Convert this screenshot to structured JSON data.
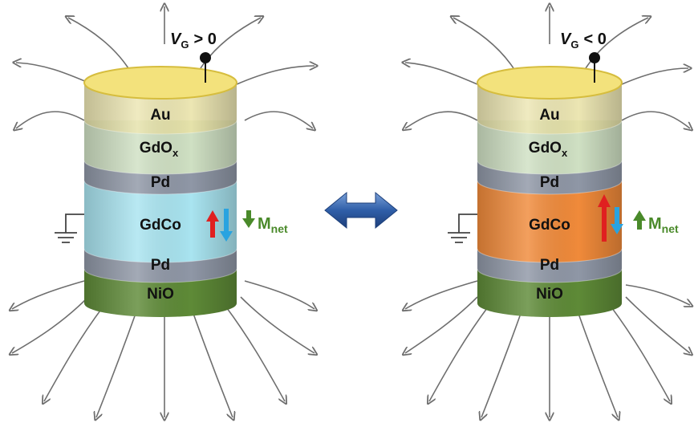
{
  "colors": {
    "field_line": "#6e6e6e",
    "gold_top": "#f3e27c",
    "gold_edge": "#d6bd3e",
    "gdox": "#cfe0c3",
    "pd": "#8f97a6",
    "gdco_left": "#a9e4f0",
    "gdco_right": "#f08a3a",
    "nio": "#5e8a37",
    "nio_top": "#7ea955",
    "arrow_red": "#e02020",
    "arrow_blue": "#29a3e0",
    "mnet_green": "#4a8a2a",
    "switch_arrow": "#2f5ea8"
  },
  "switch_arrow_icon": "double-headed-arrow",
  "left": {
    "voltage": {
      "symbol": "V",
      "subscript": "G",
      "relation": "> 0"
    },
    "layers": {
      "au": "Au",
      "gdox_main": "GdO",
      "gdox_sub": "x",
      "pd_top": "Pd",
      "gdco": "GdCo",
      "pd_bottom": "Pd",
      "nio": "NiO"
    },
    "mnet": {
      "main": "M",
      "sub": "net",
      "direction": "down"
    },
    "spin_arrows": {
      "red": "up-short",
      "blue": "down-long"
    }
  },
  "right": {
    "voltage": {
      "symbol": "V",
      "subscript": "G",
      "relation": "< 0"
    },
    "layers": {
      "au": "Au",
      "gdox_main": "GdO",
      "gdox_sub": "x",
      "pd_top": "Pd",
      "gdco": "GdCo",
      "pd_bottom": "Pd",
      "nio": "NiO"
    },
    "mnet": {
      "main": "M",
      "sub": "net",
      "direction": "up"
    },
    "spin_arrows": {
      "red": "up-long",
      "blue": "down-short"
    }
  }
}
